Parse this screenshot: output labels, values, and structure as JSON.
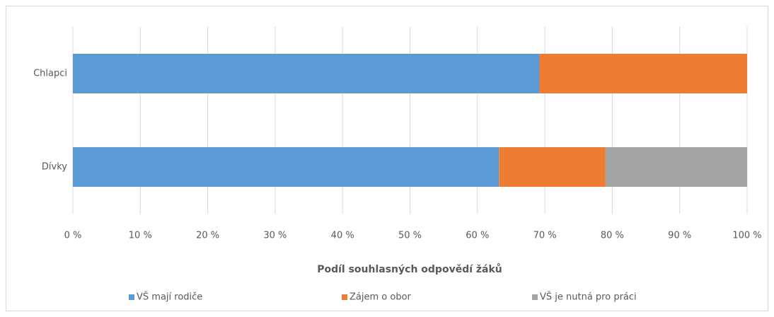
{
  "chart_data": {
    "type": "bar",
    "orientation": "horizontal",
    "stacked": true,
    "x_label": "Podíl souhlasných  odpovědí žáků",
    "categories": [
      "Chlapci",
      "Dívky"
    ],
    "series": [
      {
        "name": "VŠ mají rodiče",
        "color": "#5b9bd5",
        "values": [
          69.2,
          63.2
        ]
      },
      {
        "name": "Zájem o obor",
        "color": "#ed7d31",
        "values": [
          30.8,
          15.8
        ]
      },
      {
        "name": "VŠ je nutná pro práci",
        "color": "#a5a5a5",
        "values": [
          0,
          21.0
        ]
      }
    ],
    "xlim": [
      0,
      100
    ],
    "xticks": [
      {
        "value": 0,
        "label": "0 %"
      },
      {
        "value": 10,
        "label": "10 %"
      },
      {
        "value": 20,
        "label": "20 %"
      },
      {
        "value": 30,
        "label": "30 %"
      },
      {
        "value": 40,
        "label": "40 %"
      },
      {
        "value": 50,
        "label": "50 %"
      },
      {
        "value": 60,
        "label": "60 %"
      },
      {
        "value": 70,
        "label": "70 %"
      },
      {
        "value": 80,
        "label": "80 %"
      },
      {
        "value": 90,
        "label": "90 %"
      },
      {
        "value": 100,
        "label": "100 %"
      }
    ],
    "grid": true,
    "legend": "bottom"
  }
}
